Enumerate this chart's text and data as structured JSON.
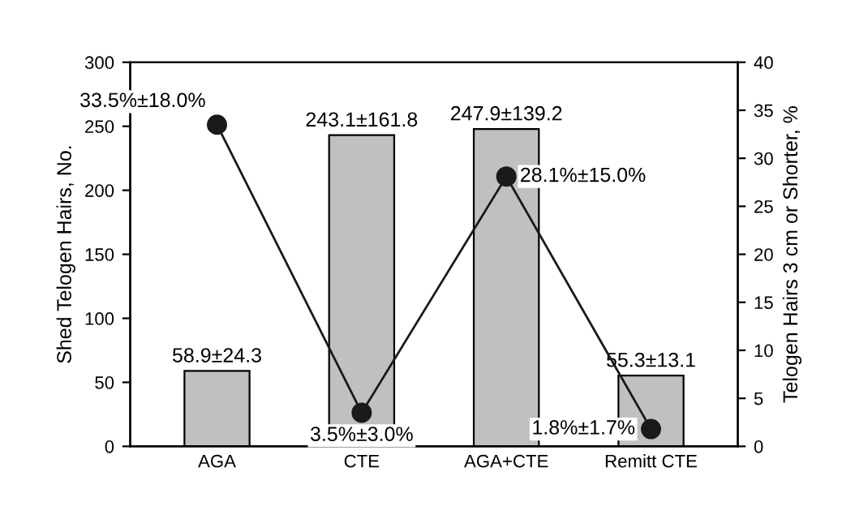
{
  "chart_data": {
    "type": "bar",
    "categories": [
      "AGA",
      "CTE",
      "AGA+CTE",
      "Remitt CTE"
    ],
    "ylabel": "Shed Telogen Hairs, No.",
    "y2label": "Telogen Hairs 3 cm or Shorter, %",
    "ylim": [
      0,
      300
    ],
    "yticks": [
      0,
      50,
      100,
      150,
      200,
      250,
      300
    ],
    "y2lim": [
      0,
      40
    ],
    "y2ticks": [
      0,
      5,
      10,
      15,
      20,
      25,
      30,
      35,
      40
    ],
    "grid": false,
    "legend": false,
    "series": [
      {
        "color": "#c0c0c0",
        "values": [
          58.9,
          243.1,
          247.9,
          55.3
        ],
        "value_labels": [
          "58.9±24.3",
          "243.1±161.8",
          "247.9±139.2",
          "55.3±13.1"
        ]
      },
      {
        "type": "line",
        "axis": "y2",
        "color": "#1a1a1a",
        "marker": "circle",
        "line_style": "solid",
        "values": [
          33.5,
          3.5,
          28.1,
          1.8
        ],
        "value_labels": [
          "33.5%±18.0%",
          "3.5%±3.0%",
          "28.1%±15.0%",
          "1.8%±1.7%"
        ]
      }
    ]
  }
}
